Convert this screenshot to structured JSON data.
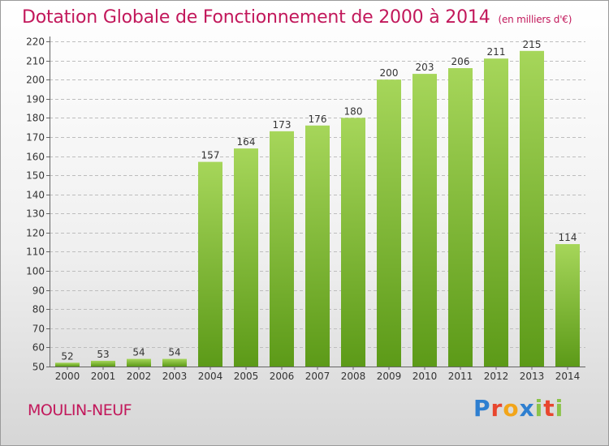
{
  "page": {
    "title": "Dotation Globale de Fonctionnement de 2000 à 2014",
    "unit": "(en milliers d'€)",
    "commune": "MOULIN-NEUF",
    "logo": "Proxiti"
  },
  "colors": {
    "bar_light": "#a6d65a",
    "bar_dark": "#5c9a18",
    "title": "#c2185b",
    "grid": "#bdbdbd"
  },
  "chart_data": {
    "type": "bar",
    "title": "Dotation Globale de Fonctionnement de 2000 à 2014",
    "subtitle": "(en milliers d'€)",
    "xlabel": "",
    "ylabel": "",
    "categories": [
      "2000",
      "2001",
      "2002",
      "2003",
      "2004",
      "2005",
      "2006",
      "2007",
      "2008",
      "2009",
      "2010",
      "2011",
      "2012",
      "2013",
      "2014"
    ],
    "values": [
      52,
      53,
      54,
      54,
      157,
      164,
      173,
      176,
      180,
      200,
      203,
      206,
      211,
      215,
      114
    ],
    "ylim": [
      50,
      220
    ],
    "yticks": [
      50,
      60,
      70,
      80,
      90,
      100,
      110,
      120,
      130,
      140,
      150,
      160,
      170,
      180,
      190,
      200,
      210,
      220
    ],
    "grid": true,
    "data_labels": true
  }
}
